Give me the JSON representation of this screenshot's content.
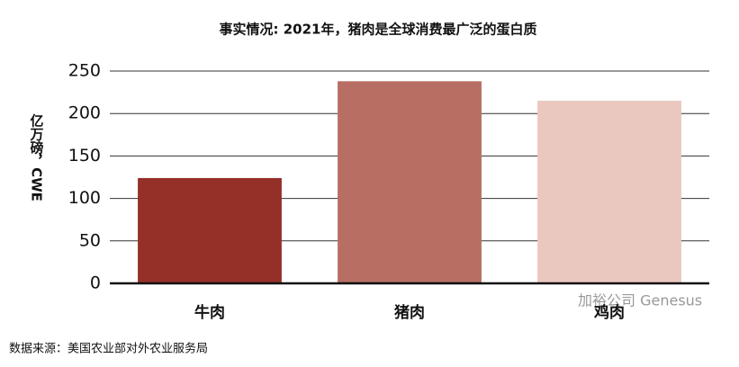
{
  "chart_data": {
    "type": "bar",
    "title": "事实情况: 2021年，猪肉是全球消费最广泛的蛋白质",
    "y_label": "亿万磅，CWE",
    "categories": [
      "牛肉",
      "猪肉",
      "鸡肉"
    ],
    "values": [
      124,
      238,
      215
    ],
    "colors": [
      "#943028",
      "#b86e63",
      "#eac8c0"
    ],
    "ylim": [
      0,
      250
    ],
    "yticks": [
      0,
      50,
      100,
      150,
      200,
      250
    ],
    "grid": true,
    "source": "数据来源：美国农业部对外农业服务局",
    "watermark": "加裕公司 Genesus"
  }
}
